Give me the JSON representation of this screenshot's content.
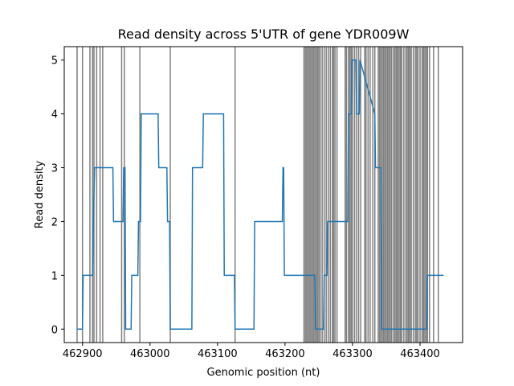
{
  "chart_data": {
    "type": "line",
    "title": "Read density across 5'UTR of gene YDR009W",
    "xlabel": "Genomic position (nt)",
    "ylabel": "Read density",
    "xlim": [
      462873,
      463463
    ],
    "ylim": [
      -0.25,
      5.25
    ],
    "xticks": [
      462900,
      463000,
      463100,
      463200,
      463300,
      463400
    ],
    "yticks": [
      0,
      1,
      2,
      3,
      4,
      5
    ],
    "grid": false,
    "legend": "none",
    "colors": {
      "line": "#1f77b4",
      "vlines": "#000000",
      "axes": "#000000",
      "background": "#ffffff"
    },
    "series": [
      {
        "x": [
          462892,
          462900,
          462901,
          462915,
          462916,
          462918,
          462945,
          462946,
          462960,
          462961,
          462963,
          462964,
          462972,
          462973,
          462982,
          462983,
          462986,
          462987,
          463012,
          463013,
          463025,
          463026,
          463029,
          463030,
          463062,
          463063,
          463078,
          463079,
          463109,
          463110,
          463125,
          463126,
          463154,
          463155,
          463196,
          463197,
          463198,
          463199,
          463244,
          463245,
          463257,
          463258,
          463262,
          463263,
          463293,
          463294,
          463298,
          463299,
          463305,
          463306,
          463310,
          463311,
          463333,
          463334,
          463342,
          463343,
          463410,
          463411,
          463435
        ],
        "y": [
          0,
          0,
          1,
          1,
          2,
          3,
          3,
          2,
          2,
          3,
          3,
          0,
          0,
          1,
          1,
          2,
          2,
          4,
          4,
          3,
          3,
          2,
          2,
          0,
          0,
          3,
          3,
          4,
          4,
          1,
          1,
          0,
          0,
          2,
          2,
          3,
          3,
          1,
          1,
          0,
          0,
          1,
          1,
          2,
          2,
          4,
          4,
          5,
          5,
          4,
          4,
          5,
          4,
          3,
          3,
          0,
          0,
          1,
          1
        ]
      }
    ],
    "vlines": [
      462892,
      462900,
      462911,
      462915,
      462917,
      462921,
      462926,
      462930,
      462958,
      462962,
      462985,
      463030,
      463126,
      463228,
      463230,
      463232,
      463234,
      463236,
      463238,
      463240,
      463242,
      463244,
      463246,
      463248,
      463250,
      463252,
      463255,
      463258,
      463261,
      463264,
      463267,
      463270,
      463272,
      463274,
      463277,
      463289,
      463291,
      463294,
      463296,
      463298,
      463300,
      463303,
      463306,
      463309,
      463312,
      463318,
      463320,
      463323,
      463326,
      463330,
      463333,
      463338,
      463340,
      463342,
      463344,
      463346,
      463348,
      463350,
      463352,
      463354,
      463356,
      463358,
      463361,
      463363,
      463365,
      463367,
      463369,
      463371,
      463373,
      463376,
      463379,
      463381,
      463383,
      463385,
      463387,
      463390,
      463393,
      463395,
      463397,
      463400,
      463403,
      463405,
      463407,
      463409,
      463411,
      463414,
      463420,
      463427
    ]
  }
}
